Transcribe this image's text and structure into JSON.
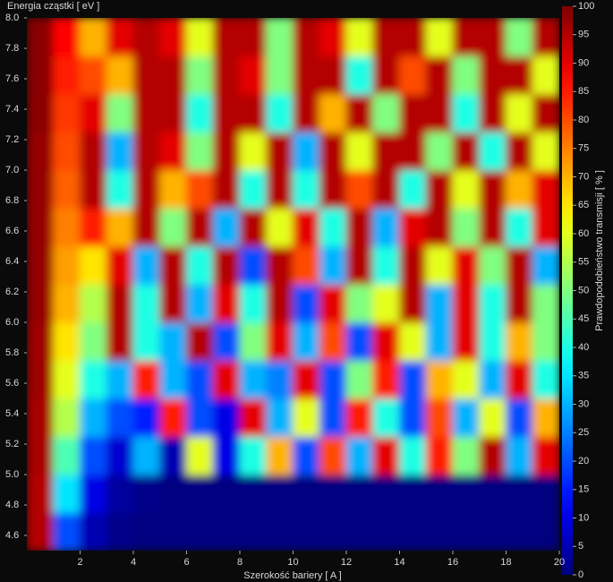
{
  "chart_data": {
    "type": "heatmap",
    "xlabel": "Szerokość bariery [ A ]",
    "ylabel": "Energia cząstki [ eV ]",
    "colorbar_label": "Prawdopodobieństwo transmisji [ % ]",
    "colormap": "jet",
    "x": [
      0.5,
      1.5,
      2.5,
      3.5,
      4.5,
      5.5,
      6.5,
      7.5,
      8.5,
      9.5,
      10.5,
      11.5,
      12.5,
      13.5,
      14.5,
      15.5,
      16.5,
      17.5,
      18.5,
      19.5
    ],
    "y": [
      4.625,
      4.875,
      5.125,
      5.375,
      5.625,
      5.875,
      6.125,
      6.375,
      6.625,
      6.875,
      7.125,
      7.375,
      7.625,
      7.875
    ],
    "values": [
      [
        95,
        20,
        5,
        1,
        0,
        0,
        0,
        0,
        0,
        0,
        0,
        0,
        0,
        0,
        0,
        0,
        0,
        0,
        0,
        0
      ],
      [
        95,
        35,
        10,
        3,
        1,
        0,
        0,
        0,
        0,
        0,
        0,
        0,
        0,
        0,
        0,
        0,
        0,
        0,
        0,
        0
      ],
      [
        96,
        45,
        20,
        8,
        30,
        5,
        60,
        10,
        40,
        70,
        20,
        80,
        30,
        90,
        40,
        85,
        50,
        95,
        30,
        90
      ],
      [
        96,
        55,
        30,
        20,
        15,
        85,
        20,
        10,
        90,
        30,
        60,
        20,
        85,
        40,
        20,
        80,
        30,
        60,
        20,
        70
      ],
      [
        97,
        60,
        40,
        30,
        85,
        30,
        20,
        90,
        30,
        25,
        90,
        20,
        50,
        85,
        20,
        70,
        60,
        30,
        90,
        40
      ],
      [
        97,
        65,
        50,
        95,
        40,
        30,
        95,
        20,
        50,
        90,
        30,
        80,
        20,
        90,
        60,
        30,
        90,
        40,
        70,
        50
      ],
      [
        98,
        70,
        55,
        95,
        40,
        95,
        30,
        90,
        40,
        95,
        20,
        90,
        50,
        60,
        95,
        30,
        90,
        40,
        95,
        50
      ],
      [
        98,
        72,
        65,
        90,
        30,
        95,
        40,
        95,
        20,
        95,
        80,
        30,
        95,
        40,
        95,
        60,
        90,
        50,
        95,
        30
      ],
      [
        98,
        75,
        85,
        70,
        95,
        50,
        95,
        30,
        95,
        60,
        90,
        40,
        95,
        30,
        90,
        95,
        50,
        95,
        40,
        90
      ],
      [
        98,
        78,
        95,
        40,
        95,
        70,
        80,
        95,
        40,
        95,
        40,
        95,
        80,
        95,
        40,
        95,
        60,
        95,
        70,
        90
      ],
      [
        98,
        80,
        95,
        30,
        95,
        90,
        50,
        95,
        60,
        95,
        30,
        95,
        60,
        95,
        95,
        50,
        95,
        40,
        95,
        60
      ],
      [
        99,
        82,
        90,
        50,
        95,
        95,
        40,
        95,
        95,
        40,
        95,
        70,
        95,
        50,
        95,
        95,
        40,
        95,
        60,
        95
      ],
      [
        99,
        85,
        80,
        70,
        95,
        95,
        50,
        95,
        90,
        50,
        95,
        95,
        40,
        95,
        80,
        95,
        50,
        95,
        95,
        60
      ],
      [
        99,
        87,
        70,
        90,
        95,
        90,
        60,
        95,
        95,
        50,
        95,
        90,
        60,
        95,
        95,
        60,
        95,
        95,
        50,
        95
      ]
    ],
    "xlim": [
      0,
      20
    ],
    "ylim": [
      4.5,
      8.0
    ],
    "clim": [
      0,
      100
    ],
    "xticks": [
      2,
      4,
      6,
      8,
      10,
      12,
      14,
      16,
      18,
      20
    ],
    "yticks": [
      4.6,
      4.8,
      {
        "value": 5,
        "label": "5.0"
      },
      5.2,
      5.4,
      5.6,
      5.8,
      {
        "value": 6,
        "label": "6.0"
      },
      6.2,
      6.4,
      6.6,
      6.8,
      {
        "value": 7,
        "label": "7.0"
      },
      7.2,
      7.4,
      7.6,
      7.8,
      {
        "value": 8,
        "label": "8.0"
      }
    ],
    "cticks": [
      0,
      5,
      10,
      15,
      20,
      25,
      30,
      35,
      40,
      45,
      50,
      55,
      60,
      65,
      70,
      75,
      80,
      85,
      90,
      95,
      100
    ]
  }
}
